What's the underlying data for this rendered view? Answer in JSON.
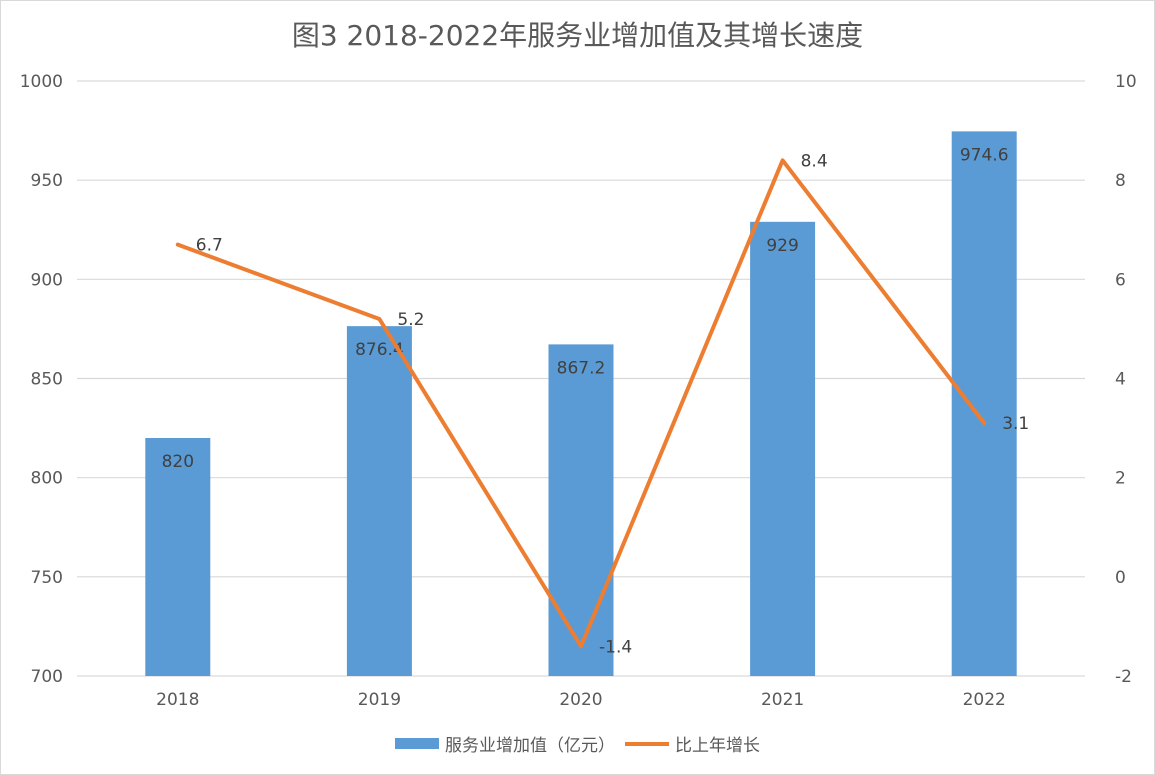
{
  "chart_data": {
    "type": "bar",
    "title": "图3  2018-2022年服务业增加值及其增长速度",
    "categories": [
      "2018",
      "2019",
      "2020",
      "2021",
      "2022"
    ],
    "series": [
      {
        "name": "服务业增加值（亿元）",
        "type": "bar",
        "axis": "left",
        "values": [
          820,
          876.4,
          867.2,
          929,
          974.6
        ],
        "color": "#5b9bd5"
      },
      {
        "name": "比上年增长",
        "type": "line",
        "axis": "right",
        "values": [
          6.7,
          5.2,
          -1.4,
          8.4,
          3.1
        ],
        "color": "#ed7d31"
      }
    ],
    "data_labels": {
      "bar": [
        "820",
        "876.4",
        "867.2",
        "929",
        "974.6"
      ],
      "line": [
        "6.7",
        "5.2",
        "-1.4",
        "8.4",
        "3.1"
      ]
    },
    "y_left": {
      "min": 700,
      "max": 1000,
      "ticks": [
        "700",
        "750",
        "800",
        "850",
        "900",
        "950",
        "1000"
      ]
    },
    "y_right": {
      "min": -2,
      "max": 10,
      "ticks": [
        "-2",
        "0",
        "2",
        "4",
        "6",
        "8",
        "10"
      ]
    },
    "grid": true,
    "legend": "bottom"
  }
}
